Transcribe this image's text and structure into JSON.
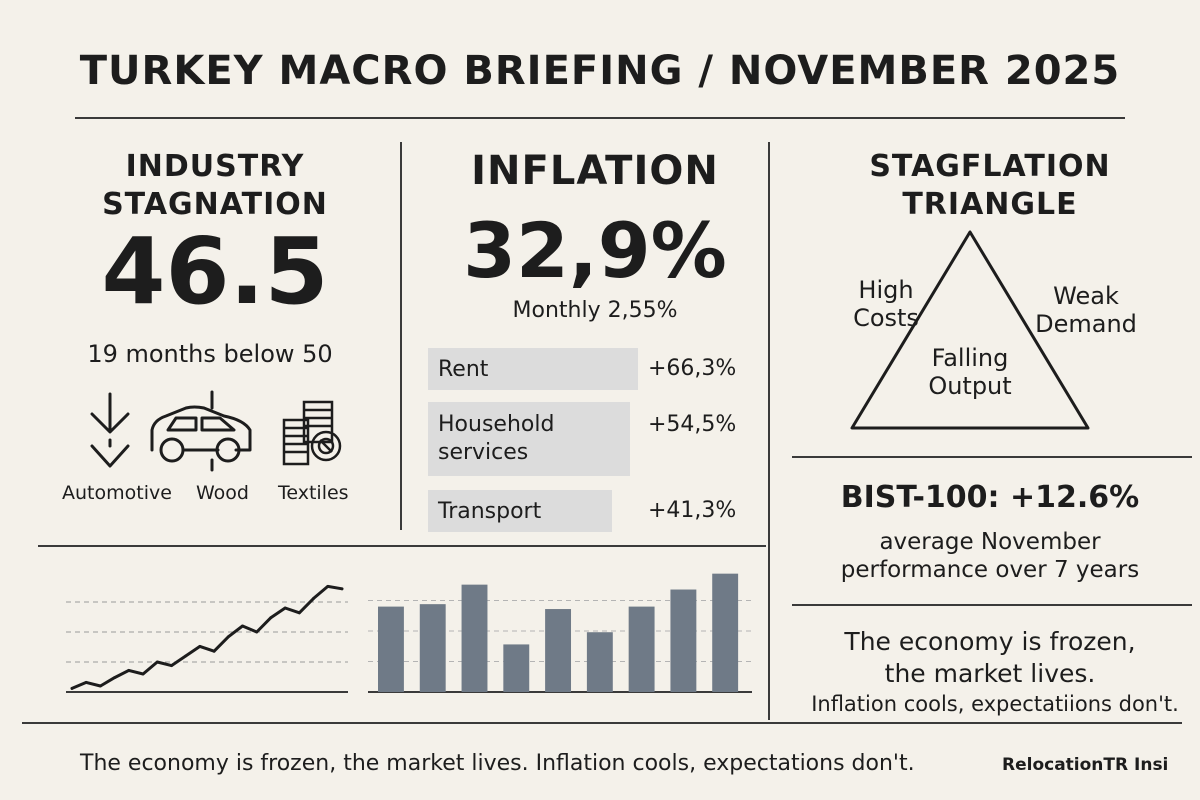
{
  "title": "TURKEY MACRO BRIEFING / NOVEMBER 2025",
  "industry": {
    "heading_line1": "INDUSTRY",
    "heading_line2": "STAGNATION",
    "value": "46.5",
    "subtitle": "19 months below 50",
    "sectors": [
      {
        "label": "Automotive",
        "icon": "down-arrow-icon"
      },
      {
        "label": "Wood",
        "icon": "car-icon"
      },
      {
        "label": "Textiles",
        "icon": "coin-stack-icon"
      }
    ]
  },
  "inflation": {
    "heading": "INFLATION",
    "value": "32,9%",
    "monthly": "Monthly 2,55%",
    "items": [
      {
        "label": "Rent",
        "value": "+66,3%"
      },
      {
        "label_line1": "Household",
        "label_line2": "services",
        "value": "+54,5%"
      },
      {
        "label": "Transport",
        "value": "+41,3%"
      }
    ]
  },
  "stagflation": {
    "heading_line1": "STAGFLATION",
    "heading_line2": "TRIANGLE",
    "left_line1": "High",
    "left_line2": "Costs",
    "right_line1": "Weak",
    "right_line2": "Demand",
    "center_line1": "Falling",
    "center_line2": "Output"
  },
  "bist": {
    "headline": "BIST-100: +12.6%",
    "sub_line1": "average November",
    "sub_line2": "performance over 7 years"
  },
  "quote": {
    "line1": "The economy is frozen,",
    "line2": "the market lives.",
    "line3": "Inflation cools, expectatiions don't."
  },
  "footer": {
    "text": "The economy is frozen, the market lives. Inflation cools, expectations don't.",
    "brand": "RelocationTR Insi"
  },
  "colors": {
    "background": "#f4f1ea",
    "ink": "#1d1d1d",
    "bar_fill": "#6f7a87",
    "label_box": "#dcdcdc"
  },
  "chart_data": [
    {
      "type": "line",
      "title": "",
      "x": [
        1,
        2,
        3,
        4,
        5,
        6,
        7,
        8,
        9,
        10,
        11,
        12,
        13,
        14,
        15,
        16,
        17,
        18,
        19,
        20
      ],
      "values": [
        3,
        8,
        5,
        12,
        18,
        15,
        25,
        22,
        30,
        38,
        34,
        46,
        55,
        50,
        62,
        70,
        66,
        78,
        88,
        86
      ],
      "ylim": [
        0,
        100
      ],
      "grid": true
    },
    {
      "type": "bar",
      "title": "",
      "categories": [
        "1",
        "2",
        "3",
        "4",
        "5",
        "6",
        "7",
        "8",
        "9"
      ],
      "values": [
        70,
        72,
        88,
        39,
        68,
        49,
        70,
        84,
        97
      ],
      "ylim": [
        0,
        100
      ],
      "grid": true
    }
  ]
}
